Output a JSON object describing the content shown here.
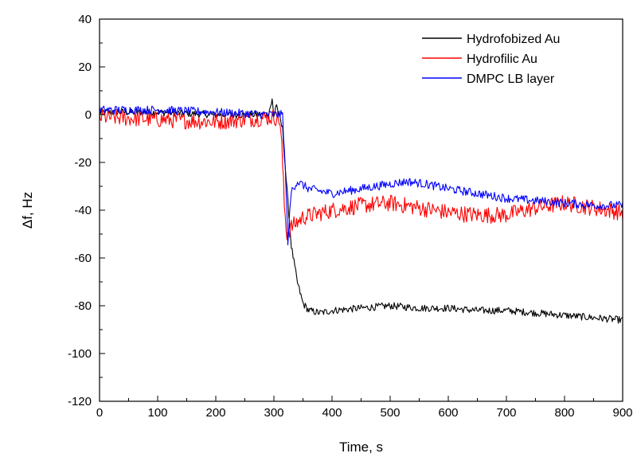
{
  "chart_data": {
    "type": "line",
    "title": "",
    "xlabel": "Time, s",
    "ylabel": "Δf, Hz",
    "xlim": [
      0,
      900
    ],
    "ylim": [
      -120,
      40
    ],
    "xticks": [
      0,
      100,
      200,
      300,
      400,
      500,
      600,
      700,
      800,
      900
    ],
    "yticks": [
      40,
      20,
      0,
      -20,
      -40,
      -60,
      -80,
      -100,
      -120
    ],
    "grid": false,
    "legend": "top-right",
    "series": [
      {
        "name": "Hydrofobized Au",
        "color": "#000000",
        "noise": 1.5,
        "points": [
          [
            0,
            1
          ],
          [
            100,
            1
          ],
          [
            200,
            0
          ],
          [
            290,
            0
          ],
          [
            297,
            6
          ],
          [
            300,
            -1
          ],
          [
            304,
            5
          ],
          [
            308,
            0
          ],
          [
            315,
            -6
          ],
          [
            322,
            -30
          ],
          [
            330,
            -55
          ],
          [
            340,
            -70
          ],
          [
            350,
            -79
          ],
          [
            360,
            -82
          ],
          [
            380,
            -83
          ],
          [
            400,
            -82
          ],
          [
            450,
            -81
          ],
          [
            500,
            -80
          ],
          [
            550,
            -81
          ],
          [
            600,
            -81
          ],
          [
            650,
            -82
          ],
          [
            700,
            -82
          ],
          [
            750,
            -83
          ],
          [
            800,
            -84
          ],
          [
            850,
            -85
          ],
          [
            900,
            -86
          ]
        ]
      },
      {
        "name": "Hydrofilic Au",
        "color": "#ff0000",
        "noise": 3.5,
        "points": [
          [
            0,
            -1
          ],
          [
            100,
            -2
          ],
          [
            200,
            -3
          ],
          [
            250,
            -2
          ],
          [
            300,
            -1
          ],
          [
            310,
            -2
          ],
          [
            314,
            -15
          ],
          [
            318,
            -38
          ],
          [
            322,
            -50
          ],
          [
            330,
            -47
          ],
          [
            350,
            -43
          ],
          [
            400,
            -40
          ],
          [
            450,
            -38
          ],
          [
            500,
            -37
          ],
          [
            550,
            -39
          ],
          [
            600,
            -41
          ],
          [
            650,
            -42
          ],
          [
            700,
            -42
          ],
          [
            750,
            -39
          ],
          [
            800,
            -37
          ],
          [
            850,
            -39
          ],
          [
            900,
            -41
          ]
        ]
      },
      {
        "name": "DMPC LB layer",
        "color": "#0000ff",
        "noise": 1.8,
        "points": [
          [
            0,
            2
          ],
          [
            100,
            2
          ],
          [
            200,
            1
          ],
          [
            300,
            0
          ],
          [
            315,
            0
          ],
          [
            320,
            -25
          ],
          [
            324,
            -53
          ],
          [
            330,
            -32
          ],
          [
            340,
            -28
          ],
          [
            360,
            -31
          ],
          [
            400,
            -33
          ],
          [
            450,
            -31
          ],
          [
            500,
            -29
          ],
          [
            530,
            -28
          ],
          [
            560,
            -29
          ],
          [
            600,
            -31
          ],
          [
            650,
            -33
          ],
          [
            700,
            -35
          ],
          [
            750,
            -36
          ],
          [
            800,
            -37
          ],
          [
            850,
            -38
          ],
          [
            900,
            -38
          ]
        ]
      }
    ]
  }
}
